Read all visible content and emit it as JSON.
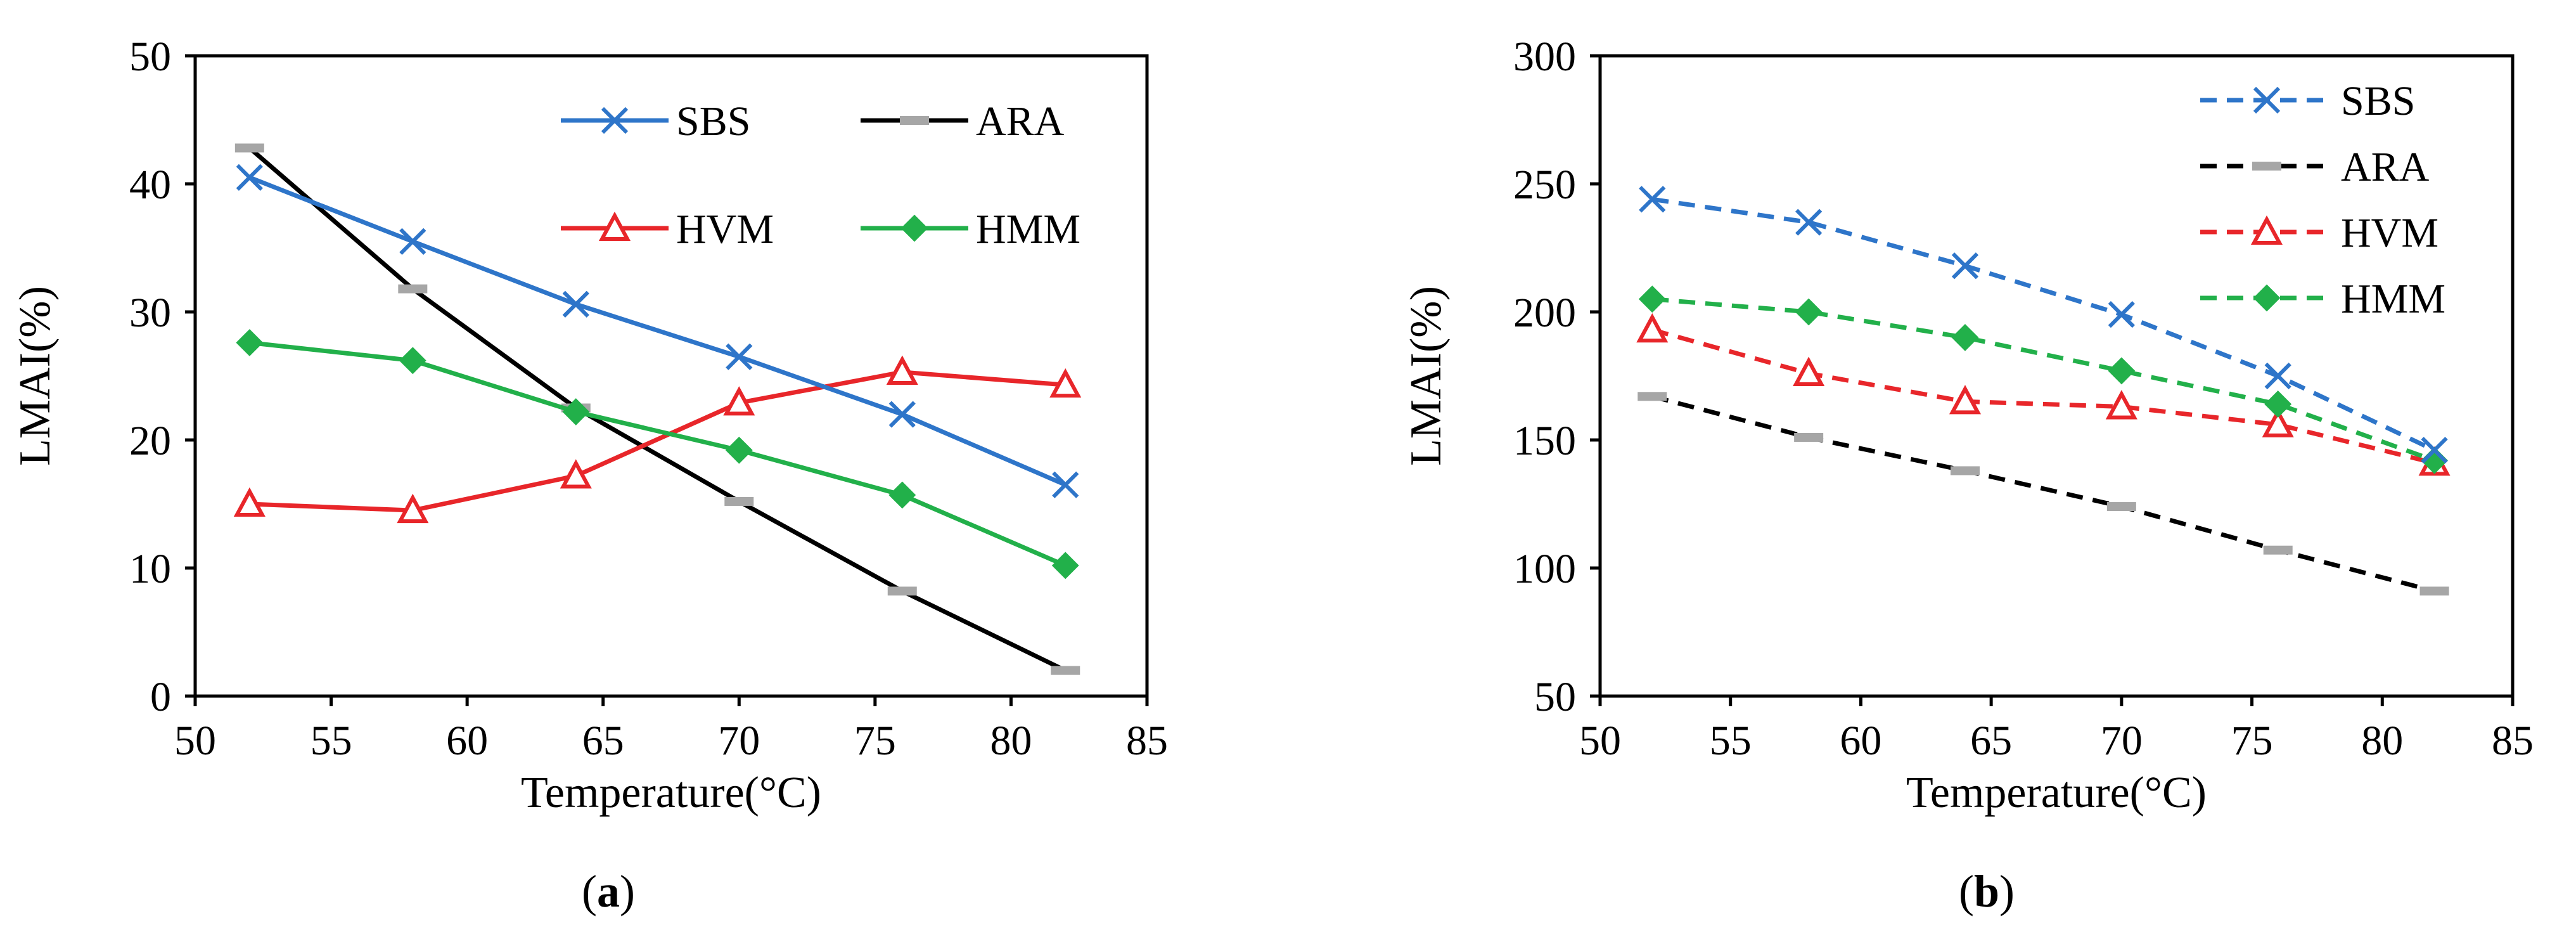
{
  "chart_data": [
    {
      "type": "line",
      "caption_letter": "a",
      "line_style": "solid",
      "xlabel": "Temperature(°C)",
      "ylabel": "LMAI(%)",
      "xlim": [
        50,
        85
      ],
      "ylim": [
        0,
        50
      ],
      "xticks": [
        50,
        55,
        60,
        65,
        70,
        75,
        80,
        85
      ],
      "yticks": [
        0,
        10,
        20,
        30,
        40,
        50
      ],
      "x": [
        52,
        58,
        64,
        70,
        76,
        82
      ],
      "legend_position": "top-right",
      "series": [
        {
          "name": "SBS",
          "color": "#2E75C9",
          "marker": "x",
          "values": [
            40.5,
            35.5,
            30.6,
            26.5,
            22.0,
            16.5
          ]
        },
        {
          "name": "ARA",
          "color": "#000000",
          "marker": "dash",
          "values": [
            42.8,
            31.8,
            22.5,
            15.2,
            8.2,
            2.0
          ]
        },
        {
          "name": "HVM",
          "color": "#E8262A",
          "marker": "triangle",
          "values": [
            15.0,
            14.5,
            17.2,
            22.9,
            25.3,
            24.3
          ]
        },
        {
          "name": "HMM",
          "color": "#22B04A",
          "marker": "diamond",
          "values": [
            27.6,
            26.2,
            22.2,
            19.2,
            15.7,
            10.2
          ]
        }
      ]
    },
    {
      "type": "line",
      "caption_letter": "b",
      "line_style": "dashed",
      "xlabel": "Temperature(°C)",
      "ylabel": "LMAI(%)",
      "xlim": [
        50,
        85
      ],
      "ylim": [
        50,
        300
      ],
      "xticks": [
        50,
        55,
        60,
        65,
        70,
        75,
        80,
        85
      ],
      "yticks": [
        50,
        100,
        150,
        200,
        250,
        300
      ],
      "x": [
        52,
        58,
        64,
        70,
        76,
        82
      ],
      "legend_position": "top-right",
      "series": [
        {
          "name": "SBS",
          "color": "#2E75C9",
          "marker": "x",
          "values": [
            244,
            235,
            218,
            199,
            175,
            146
          ]
        },
        {
          "name": "ARA",
          "color": "#000000",
          "marker": "dash",
          "values": [
            167,
            151,
            138,
            124,
            107,
            91
          ]
        },
        {
          "name": "HVM",
          "color": "#E8262A",
          "marker": "triangle",
          "values": [
            193,
            176,
            165,
            163,
            156,
            141
          ]
        },
        {
          "name": "HMM",
          "color": "#22B04A",
          "marker": "diamond",
          "values": [
            205,
            200,
            190,
            177,
            164,
            142
          ]
        }
      ]
    }
  ]
}
